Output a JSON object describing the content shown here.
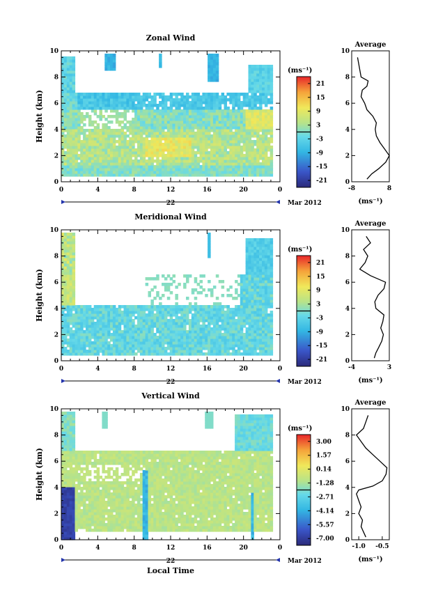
{
  "chart_data": [
    {
      "type": "heatmap",
      "title": "Zonal Wind",
      "ylabel": "Height (km)",
      "xlabel": "",
      "x_ticks": [
        "0",
        "4",
        "8",
        "12",
        "16",
        "20",
        "0"
      ],
      "y_ticks": [
        "0",
        "2",
        "4",
        "6",
        "8",
        "10"
      ],
      "xlim": [
        0,
        24
      ],
      "ylim": [
        0,
        10
      ],
      "day_label": "22",
      "date_label": "Mar 2012",
      "colorbar": {
        "unit": "(ms⁻¹)",
        "ticks": [
          "21",
          "15",
          "9",
          "3",
          "-3",
          "-9",
          "-15",
          "-21"
        ],
        "range": [
          -24,
          24
        ]
      },
      "average": {
        "title": "Average",
        "xlabel": "(ms⁻¹)",
        "x_ticks": [
          "-8",
          "8"
        ],
        "xlim": [
          -8,
          8
        ],
        "y_ticks": [
          "0",
          "2",
          "4",
          "6",
          "8",
          "10"
        ],
        "heights": [
          0.2,
          0.6,
          1.0,
          1.5,
          2.0,
          2.5,
          3.0,
          3.5,
          4.0,
          4.5,
          5.0,
          5.5,
          6.0,
          6.5,
          7.0,
          7.3,
          7.7,
          8.0,
          8.5,
          9.0,
          9.5
        ],
        "values": [
          -1.5,
          0.5,
          3.5,
          6.5,
          8.0,
          6.0,
          4.0,
          2.5,
          2.0,
          2.5,
          1.0,
          -1.5,
          -2.5,
          -4.0,
          -3.5,
          -1.5,
          -1.0,
          -4.0,
          -4.5,
          -5.0,
          -5.5
        ]
      }
    },
    {
      "type": "heatmap",
      "title": "Meridional Wind",
      "ylabel": "Height (km)",
      "xlabel": "",
      "x_ticks": [
        "0",
        "4",
        "8",
        "12",
        "16",
        "20",
        "0"
      ],
      "y_ticks": [
        "0",
        "2",
        "4",
        "6",
        "8",
        "10"
      ],
      "xlim": [
        0,
        24
      ],
      "ylim": [
        0,
        10
      ],
      "day_label": "22",
      "date_label": "Mar 2012",
      "colorbar": {
        "unit": "(ms⁻¹)",
        "ticks": [
          "21",
          "15",
          "9",
          "3",
          "-3",
          "-9",
          "-15",
          "-21"
        ],
        "range": [
          -24,
          24
        ]
      },
      "average": {
        "title": "Average",
        "xlabel": "(ms⁻¹)",
        "x_ticks": [
          "-4",
          "3"
        ],
        "xlim": [
          -4,
          3
        ],
        "y_ticks": [
          "0",
          "2",
          "4",
          "6",
          "8",
          "10"
        ],
        "heights": [
          0.2,
          0.6,
          1.0,
          1.5,
          2.0,
          2.5,
          3.0,
          3.5,
          4.0,
          4.5,
          5.0,
          5.5,
          6.0,
          6.5,
          7.0,
          7.5,
          8.0,
          8.5,
          9.0,
          9.5
        ],
        "values": [
          0.2,
          0.5,
          1.0,
          1.6,
          1.9,
          1.4,
          1.8,
          2.0,
          0.5,
          0.3,
          0.9,
          2.0,
          2.3,
          -0.5,
          -2.5,
          -1.5,
          -1.0,
          -1.8,
          -0.5,
          -1.3
        ]
      }
    },
    {
      "type": "heatmap",
      "title": "Vertical Wind",
      "ylabel": "Height (km)",
      "xlabel": "Local Time",
      "x_ticks": [
        "0",
        "4",
        "8",
        "12",
        "16",
        "20",
        "0"
      ],
      "y_ticks": [
        "0",
        "2",
        "4",
        "6",
        "8",
        "10"
      ],
      "xlim": [
        0,
        24
      ],
      "ylim": [
        0,
        10
      ],
      "day_label": "22",
      "date_label": "Mar 2012",
      "colorbar": {
        "unit": "(ms⁻¹)",
        "ticks": [
          "3.00",
          "1.57",
          "0.14",
          "-1.28",
          "-2.71",
          "-4.14",
          "-5.57",
          "-7.00"
        ],
        "range": [
          -7.7,
          3.7
        ]
      },
      "average": {
        "title": "Average",
        "xlabel": "(ms⁻¹)",
        "x_ticks": [
          "-1.0",
          "-0.5"
        ],
        "xlim": [
          -1.15,
          -0.35
        ],
        "y_ticks": [
          "0",
          "2",
          "4",
          "6",
          "8",
          "10"
        ],
        "heights": [
          0.2,
          0.6,
          1.0,
          1.5,
          2.0,
          2.5,
          3.0,
          3.5,
          3.8,
          4.1,
          4.5,
          5.0,
          5.5,
          6.0,
          6.5,
          7.0,
          7.5,
          8.0,
          8.5,
          9.0,
          9.5
        ],
        "values": [
          -0.85,
          -0.9,
          -0.95,
          -0.92,
          -1.0,
          -0.95,
          -1.0,
          -1.05,
          -1.0,
          -0.7,
          -0.5,
          -0.42,
          -0.4,
          -0.55,
          -0.7,
          -0.85,
          -0.95,
          -1.05,
          -0.9,
          -0.85,
          -0.8
        ]
      }
    }
  ]
}
